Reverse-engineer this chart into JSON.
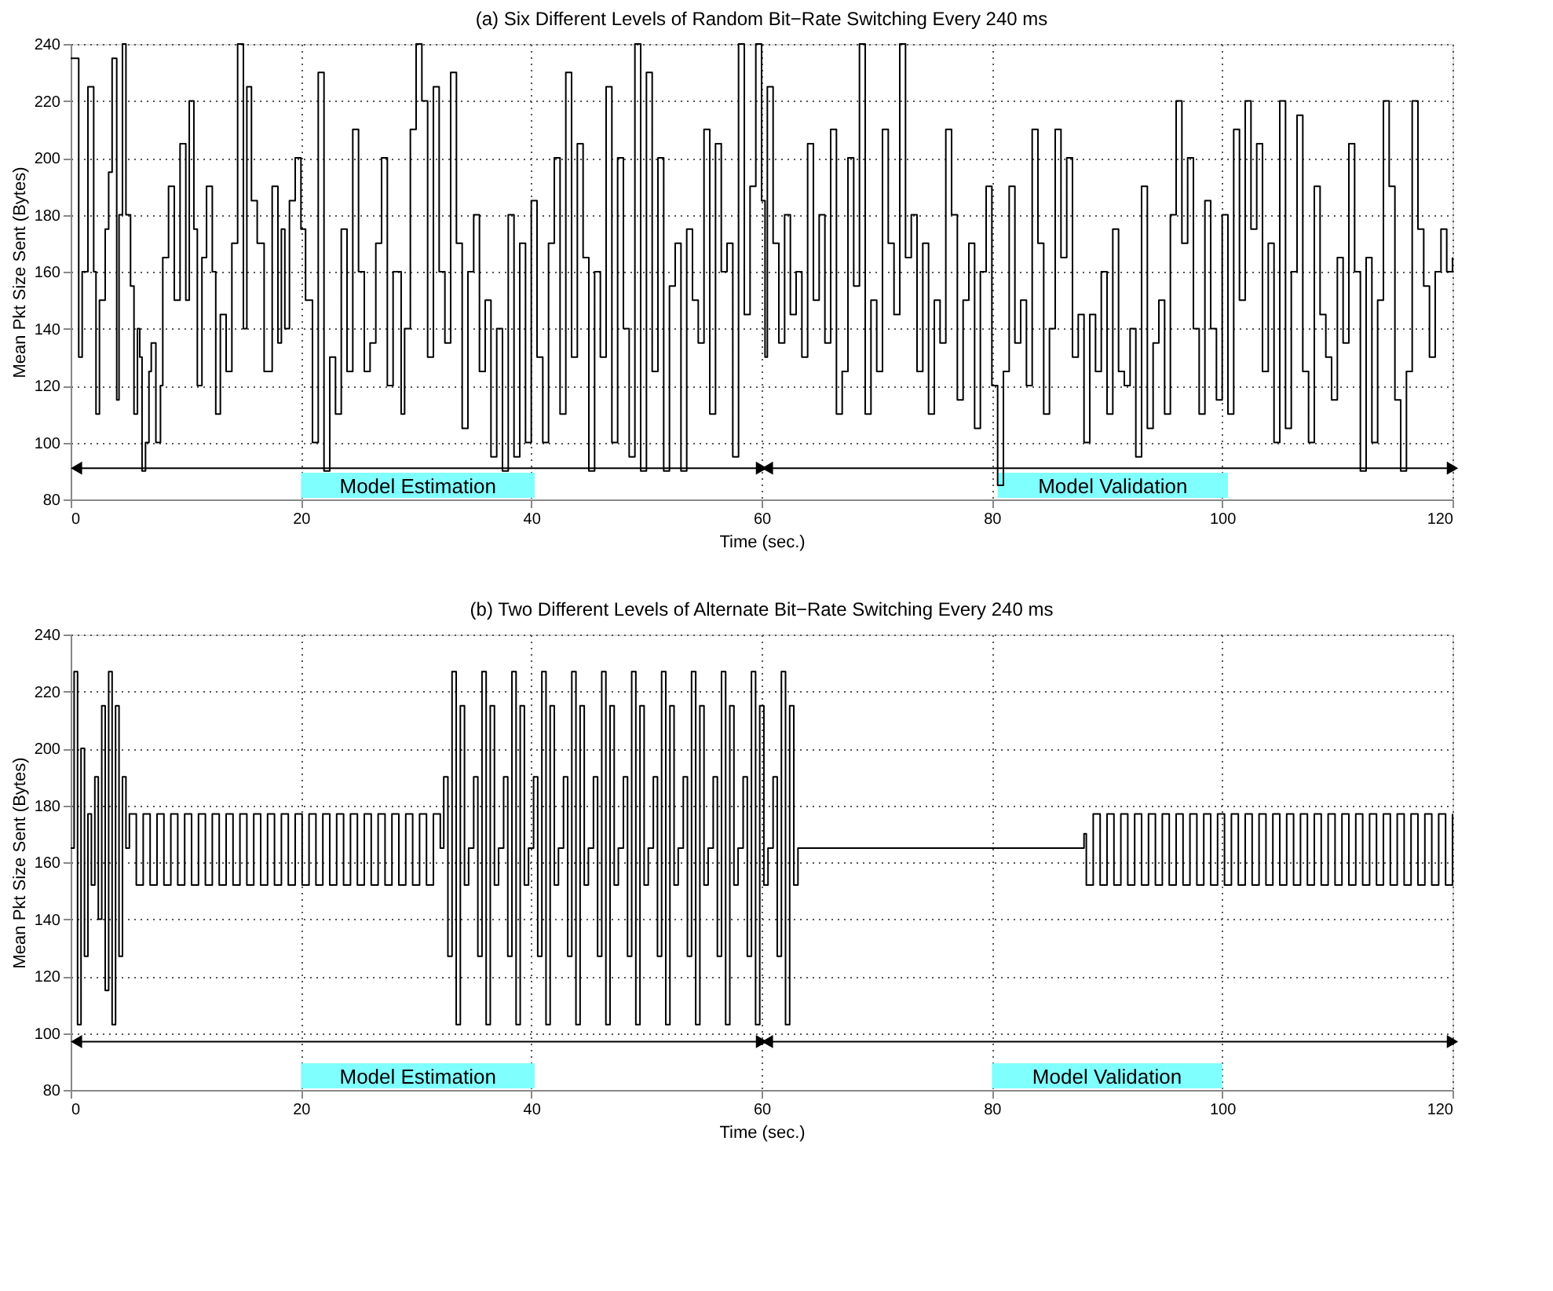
{
  "chart_data": [
    {
      "type": "step",
      "title": "(a) Six Different Levels of Random Bit−Rate Switching Every 240 ms",
      "xlabel": "Time (sec.)",
      "ylabel": "Mean Pkt Size Sent (Bytes)",
      "grid": true,
      "xlim": [
        0,
        120
      ],
      "ylim": [
        80,
        240
      ],
      "xticks": [
        0,
        20,
        40,
        60,
        80,
        100,
        120
      ],
      "yticks": [
        80,
        100,
        120,
        140,
        160,
        180,
        200,
        220,
        240
      ],
      "series": [
        {
          "color": "#000000",
          "x": [
            0,
            0.7,
            1.0,
            1.5,
            2.0,
            2.2,
            2.5,
            3.0,
            3.3,
            3.6,
            4.0,
            4.2,
            4.5,
            4.8,
            5.2,
            5.5,
            5.8,
            6.0,
            6.2,
            6.5,
            6.8,
            7.0,
            7.4,
            7.8,
            8.0,
            8.5,
            9.0,
            9.5,
            10.0,
            10.3,
            10.7,
            11.0,
            11.4,
            11.8,
            12.3,
            12.6,
            13.0,
            13.5,
            14.0,
            14.5,
            15.0,
            15.3,
            15.7,
            16.2,
            16.8,
            17.5,
            18.0,
            18.3,
            18.6,
            19.0,
            19.5,
            20.0,
            20.4,
            21.0,
            21.5,
            22.0,
            22.5,
            23.0,
            23.5,
            24.0,
            24.5,
            25.0,
            25.5,
            26.0,
            26.5,
            27.0,
            27.5,
            28.0,
            28.7,
            29.0,
            29.5,
            30.0,
            30.5,
            31.0,
            31.5,
            32.0,
            32.5,
            33.0,
            33.5,
            34.0,
            34.5,
            35.0,
            35.5,
            36.0,
            36.5,
            37.0,
            37.5,
            38.0,
            38.5,
            39.0,
            39.5,
            40.0,
            40.5,
            41.0,
            41.5,
            42.0,
            42.5,
            43.0,
            43.5,
            44.0,
            44.5,
            45.0,
            45.5,
            46.0,
            46.5,
            47.0,
            47.5,
            48.0,
            48.5,
            49.0,
            49.5,
            50.0,
            50.5,
            51.0,
            51.5,
            52.0,
            52.5,
            53.0,
            53.5,
            54.0,
            54.5,
            55.0,
            55.5,
            56.0,
            56.5,
            57.0,
            57.5,
            58.0,
            58.5,
            59.0,
            59.5,
            60.0,
            60.3,
            60.5,
            61.0,
            61.5,
            62.0,
            62.5,
            63.0,
            63.5,
            64.0,
            64.5,
            65.0,
            65.5,
            66.0,
            66.5,
            67.0,
            67.5,
            68.0,
            68.5,
            69.0,
            69.5,
            70.0,
            70.5,
            71.0,
            71.5,
            72.0,
            72.5,
            73.0,
            73.5,
            74.0,
            74.5,
            75.0,
            75.5,
            76.0,
            76.5,
            77.0,
            77.5,
            78.0,
            78.5,
            79.0,
            79.5,
            80.0,
            80.5,
            81.0,
            81.5,
            82.0,
            82.5,
            83.0,
            83.5,
            84.0,
            84.5,
            85.0,
            85.5,
            86.0,
            86.5,
            87.0,
            87.5,
            88.0,
            88.5,
            89.0,
            89.5,
            90.0,
            90.5,
            91.0,
            91.5,
            92.0,
            92.5,
            93.0,
            93.5,
            94.0,
            94.5,
            95.0,
            95.5,
            96.0,
            96.5,
            97.0,
            97.5,
            98.0,
            98.5,
            99.0,
            99.5,
            100.0,
            100.5,
            101.0,
            101.5,
            102.0,
            102.5,
            103.0,
            103.5,
            104.0,
            104.5,
            105.0,
            105.5,
            106.0,
            106.5,
            107.0,
            107.5,
            108.0,
            108.5,
            109.0,
            109.5,
            110.0,
            110.5,
            111.0,
            111.5,
            112.0,
            112.5,
            113.0,
            113.5,
            114.0,
            114.5,
            115.0,
            115.5,
            116.0,
            116.5,
            117.0,
            117.5,
            118.0,
            118.5,
            119.0,
            119.5,
            120
          ],
          "values": [
            235,
            130,
            160,
            225,
            160,
            110,
            150,
            175,
            195,
            235,
            115,
            180,
            240,
            180,
            155,
            110,
            140,
            130,
            90,
            100,
            125,
            135,
            100,
            120,
            165,
            190,
            150,
            205,
            150,
            220,
            175,
            120,
            165,
            190,
            160,
            110,
            145,
            125,
            170,
            240,
            140,
            225,
            185,
            170,
            125,
            190,
            135,
            175,
            140,
            185,
            200,
            175,
            150,
            100,
            230,
            90,
            130,
            110,
            175,
            125,
            210,
            160,
            125,
            135,
            170,
            200,
            120,
            160,
            110,
            140,
            210,
            240,
            220,
            130,
            225,
            160,
            135,
            230,
            170,
            105,
            160,
            180,
            125,
            150,
            95,
            140,
            90,
            180,
            95,
            170,
            100,
            185,
            130,
            100,
            170,
            200,
            110,
            230,
            130,
            205,
            165,
            90,
            160,
            130,
            225,
            100,
            200,
            140,
            95,
            240,
            90,
            230,
            125,
            200,
            90,
            155,
            170,
            90,
            175,
            150,
            135,
            210,
            110,
            205,
            160,
            170,
            95,
            240,
            145,
            190,
            240,
            185,
            130,
            225,
            170,
            135,
            180,
            145,
            160,
            130,
            205,
            150,
            180,
            135,
            210,
            110,
            125,
            200,
            155,
            240,
            110,
            150,
            125,
            210,
            170,
            145,
            240,
            165,
            180,
            125,
            170,
            110,
            150,
            135,
            210,
            180,
            115,
            150,
            170,
            105,
            160,
            190,
            120,
            85,
            125,
            190,
            135,
            150,
            120,
            210,
            170,
            110,
            140,
            210,
            165,
            200,
            130,
            145,
            100,
            145,
            125,
            160,
            110,
            175,
            125,
            120,
            140,
            95,
            190,
            105,
            135,
            150,
            110,
            180,
            220,
            170,
            200,
            140,
            110,
            185,
            140,
            115,
            180,
            110,
            210,
            150,
            220,
            175,
            205,
            125,
            170,
            100,
            220,
            105,
            160,
            215,
            125,
            100,
            190,
            145,
            130,
            115,
            165,
            135,
            205,
            160,
            90,
            165,
            100,
            150,
            220,
            190,
            115,
            90,
            125,
            220,
            175,
            155,
            130,
            160,
            175,
            160,
            165
          ]
        },
        {
          "type": "line",
          "color": "#000000",
          "marker": "triangle",
          "x": [
            0.5,
            60
          ],
          "values": [
            91,
            91
          ]
        },
        {
          "type": "line",
          "color": "#000000",
          "marker": "triangle",
          "x": [
            60.5,
            120
          ],
          "values": [
            91,
            91
          ]
        }
      ],
      "bands": [
        {
          "axis": "x",
          "from": 20,
          "to": 40.3,
          "label": "Model Estimation",
          "color": "#80ffff"
        },
        {
          "axis": "x",
          "from": 80.5,
          "to": 100.5,
          "label": "Model Validation",
          "color": "#80ffff"
        }
      ]
    },
    {
      "type": "step",
      "title": "(b) Two Different Levels of Alternate Bit−Rate Switching Every 240 ms",
      "xlabel": "Time (sec.)",
      "ylabel": "Mean Pkt Size Sent (Bytes)",
      "grid": true,
      "xlim": [
        0,
        120
      ],
      "ylim": [
        80,
        240
      ],
      "xticks": [
        0,
        20,
        40,
        60,
        80,
        100,
        120
      ],
      "yticks": [
        80,
        100,
        120,
        140,
        160,
        180,
        200,
        220,
        240
      ],
      "series": [
        {
          "color": "#000000",
          "x": [
            0,
            0.3,
            0.6,
            0.9,
            1.2,
            1.5,
            1.8,
            2.1,
            2.4,
            2.7,
            3.0,
            3.3,
            3.6,
            3.9,
            4.2,
            4.5,
            4.8,
            5.1,
            5.7,
            6.3,
            6.9,
            7.5,
            8.1,
            8.7,
            9.3,
            9.9,
            10.5,
            11.1,
            11.7,
            12.3,
            12.9,
            13.5,
            14.1,
            14.7,
            15.3,
            15.9,
            16.5,
            17.1,
            17.7,
            18.3,
            18.9,
            19.5,
            20.1,
            20.7,
            21.3,
            21.9,
            22.5,
            23.1,
            23.7,
            24.3,
            24.9,
            25.5,
            26.1,
            26.7,
            27.3,
            27.9,
            28.5,
            29.1,
            29.7,
            30.3,
            30.9,
            31.5,
            32.1,
            32.4,
            32.76,
            33.12,
            33.48,
            33.84,
            34.2,
            34.56,
            35.0,
            35.36,
            35.72,
            36.08,
            36.44,
            36.8,
            37.16,
            37.6,
            37.96,
            38.32,
            38.68,
            39.04,
            39.4,
            39.76,
            40.2,
            40.56,
            40.92,
            41.28,
            41.64,
            42.0,
            42.36,
            42.8,
            43.16,
            43.52,
            43.88,
            44.24,
            44.6,
            44.96,
            45.4,
            45.76,
            46.12,
            46.48,
            46.84,
            47.2,
            47.56,
            48.0,
            48.36,
            48.72,
            49.08,
            49.44,
            49.8,
            50.16,
            50.6,
            50.96,
            51.32,
            51.68,
            52.04,
            52.4,
            52.76,
            53.2,
            53.56,
            53.92,
            54.28,
            54.64,
            55.0,
            55.36,
            55.8,
            56.16,
            56.52,
            56.88,
            57.24,
            57.6,
            57.96,
            58.4,
            58.76,
            59.12,
            59.48,
            59.84,
            60.2,
            60.56,
            61.0,
            61.36,
            61.72,
            62.08,
            62.44,
            62.8,
            63.16,
            88.0,
            88.2,
            88.8,
            89.4,
            90.0,
            90.6,
            91.2,
            91.8,
            92.4,
            93.0,
            93.6,
            94.2,
            94.8,
            95.4,
            96.0,
            96.6,
            97.2,
            97.8,
            98.4,
            99.0,
            99.6,
            100.2,
            100.8,
            101.4,
            102.0,
            102.6,
            103.2,
            103.8,
            104.4,
            105.0,
            105.6,
            106.2,
            106.8,
            107.4,
            108.0,
            108.6,
            109.2,
            109.8,
            110.4,
            111.0,
            111.6,
            112.2,
            112.8,
            113.4,
            114.0,
            114.6,
            115.2,
            115.8,
            116.4,
            117.0,
            117.6,
            118.2,
            118.8,
            119.4,
            120
          ],
          "values": [
            165,
            227,
            103,
            200,
            127,
            177,
            152,
            190,
            140,
            215,
            115,
            227,
            103,
            215,
            127,
            190,
            165,
            177,
            152,
            177,
            152,
            177,
            152,
            177,
            152,
            177,
            152,
            177,
            152,
            177,
            152,
            177,
            152,
            177,
            152,
            177,
            152,
            177,
            152,
            177,
            152,
            177,
            152,
            177,
            152,
            177,
            152,
            177,
            152,
            177,
            152,
            177,
            152,
            177,
            152,
            177,
            152,
            177,
            152,
            177,
            152,
            177,
            165,
            190,
            127,
            227,
            103,
            215,
            152,
            165,
            190,
            127,
            227,
            103,
            215,
            152,
            165,
            190,
            127,
            227,
            103,
            215,
            152,
            165,
            190,
            127,
            227,
            103,
            215,
            152,
            165,
            190,
            127,
            227,
            103,
            215,
            152,
            165,
            190,
            127,
            227,
            103,
            215,
            152,
            165,
            190,
            127,
            227,
            103,
            215,
            152,
            165,
            190,
            127,
            227,
            103,
            215,
            152,
            165,
            190,
            127,
            227,
            103,
            215,
            152,
            165,
            190,
            127,
            227,
            103,
            215,
            152,
            165,
            190,
            127,
            227,
            103,
            215,
            152,
            165,
            190,
            127,
            227,
            103,
            215,
            152,
            165,
            170,
            152,
            177,
            152,
            177,
            152,
            177,
            152,
            177,
            152,
            177,
            152,
            177,
            152,
            177,
            152,
            177,
            152,
            177,
            152,
            177,
            152,
            177,
            152,
            177,
            152,
            177,
            152,
            177,
            152,
            177,
            152,
            177,
            152,
            177,
            152,
            177,
            152,
            177,
            152,
            177,
            152,
            177,
            152,
            177,
            152,
            177,
            152,
            177,
            152,
            177,
            152,
            177,
            152,
            177
          ]
        },
        {
          "type": "line",
          "color": "#000000",
          "marker": "triangle",
          "x": [
            0.5,
            60
          ],
          "values": [
            97,
            97
          ]
        },
        {
          "type": "line",
          "color": "#000000",
          "marker": "triangle",
          "x": [
            60.5,
            120
          ],
          "values": [
            97,
            97
          ]
        }
      ],
      "bands": [
        {
          "axis": "x",
          "from": 20,
          "to": 40.3,
          "label": "Model Estimation",
          "color": "#80ffff"
        },
        {
          "axis": "x",
          "from": 80,
          "to": 100,
          "label": "Model Validation",
          "color": "#80ffff"
        }
      ]
    }
  ]
}
